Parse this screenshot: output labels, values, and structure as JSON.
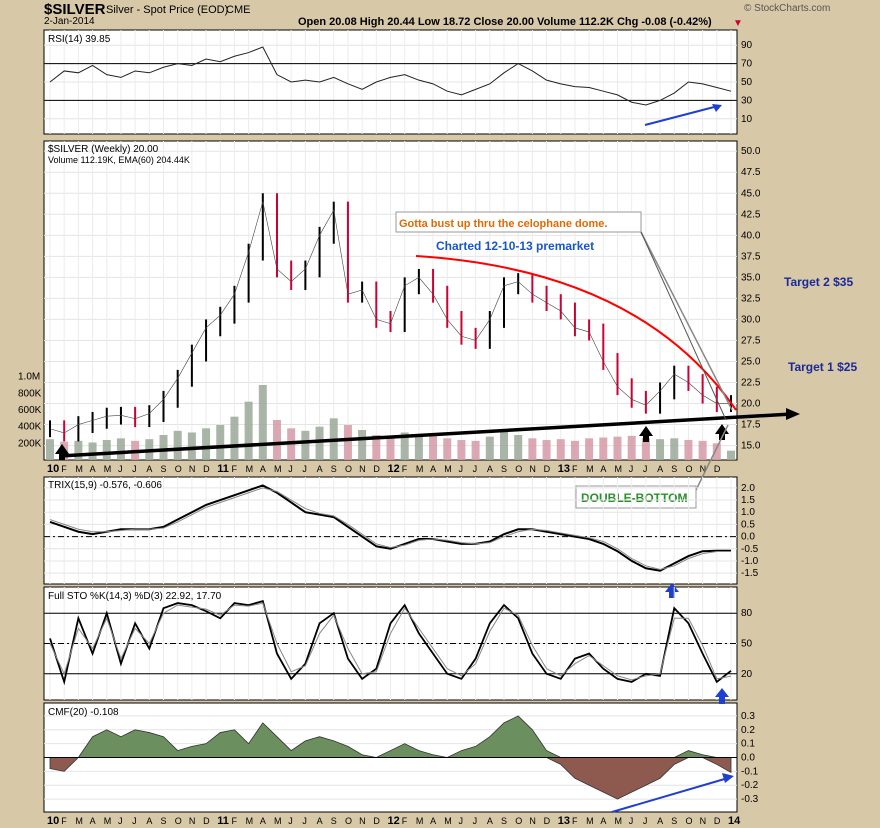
{
  "header": {
    "symbol": "$SILVER",
    "name": "Silver - Spot Price (EOD)",
    "exchange": "CME",
    "date": "2-Jan-2014",
    "ohlc": "Open 20.08   High 20.44   Low 18.72   Close 20.00   Volume 112.2K   Chg -0.08 (-0.42%)",
    "brand": "© StockCharts.com"
  },
  "colors": {
    "up": "#000000",
    "down": "#cc0033",
    "cmf_pos": "#6b8f5e",
    "cmf_neg": "#8e5a50",
    "volume_up": "#9aa896",
    "volume_down": "#d49aa6",
    "annotation_blue": "#1f3fd1",
    "dome": "#ff0000",
    "green_text": "#2a8f2a",
    "orange_text": "#e06a00"
  },
  "icons": [
    "up-arrow-black-icon",
    "up-arrow-blue-icon"
  ],
  "chart_data": [
    {
      "type": "line",
      "panel": "RSI",
      "title": "RSI(14) 39.85",
      "y_ticks": [
        "90",
        "70",
        "50",
        "30",
        "10"
      ],
      "ylim": [
        0,
        100
      ],
      "reference_lines": [
        70,
        30
      ],
      "x": [
        "10",
        "F",
        "M",
        "A",
        "M",
        "J",
        "J",
        "A",
        "S",
        "O",
        "N",
        "D",
        "11",
        "F",
        "M",
        "A",
        "M",
        "J",
        "J",
        "A",
        "S",
        "O",
        "N",
        "D",
        "12",
        "F",
        "M",
        "A",
        "M",
        "J",
        "J",
        "A",
        "S",
        "O",
        "N",
        "D",
        "13",
        "F",
        "M",
        "A",
        "M",
        "J",
        "J",
        "A",
        "S",
        "O",
        "N",
        "D",
        "14"
      ],
      "series": [
        {
          "name": "RSI(14)",
          "values": [
            50,
            62,
            60,
            68,
            58,
            55,
            62,
            60,
            66,
            70,
            68,
            75,
            72,
            78,
            82,
            88,
            58,
            50,
            52,
            50,
            55,
            48,
            42,
            50,
            55,
            58,
            52,
            48,
            40,
            36,
            42,
            48,
            60,
            70,
            62,
            52,
            48,
            45,
            44,
            40,
            36,
            28,
            25,
            30,
            38,
            50,
            48,
            44,
            40
          ]
        }
      ]
    },
    {
      "type": "ohlc",
      "panel": "price",
      "title": "$SILVER (Weekly) 20.00",
      "y_ticks": [
        "50.0",
        "47.5",
        "45.0",
        "42.5",
        "40.0",
        "37.5",
        "35.0",
        "32.5",
        "30.0",
        "27.5",
        "25.0",
        "22.5",
        "20.0",
        "17.5",
        "15.0"
      ],
      "ylim": [
        14,
        50.5
      ],
      "x_ticks": [
        "10",
        "F",
        "M",
        "A",
        "M",
        "J",
        "J",
        "A",
        "S",
        "O",
        "N",
        "D",
        "11",
        "F",
        "M",
        "A",
        "M",
        "J",
        "J",
        "A",
        "S",
        "O",
        "N",
        "D",
        "12",
        "F",
        "M",
        "A",
        "M",
        "J",
        "J",
        "A",
        "S",
        "O",
        "N",
        "D",
        "13",
        "F",
        "M",
        "A",
        "M",
        "J",
        "J",
        "A",
        "S",
        "O",
        "N",
        "D"
      ],
      "x": [
        "10",
        "F",
        "M",
        "A",
        "M",
        "J",
        "J",
        "A",
        "S",
        "O",
        "N",
        "D",
        "11",
        "F",
        "M",
        "A",
        "M",
        "J",
        "J",
        "A",
        "S",
        "O",
        "N",
        "D",
        "12",
        "F",
        "M",
        "A",
        "M",
        "J",
        "J",
        "A",
        "S",
        "O",
        "N",
        "D",
        "13",
        "F",
        "M",
        "A",
        "M",
        "J",
        "J",
        "A",
        "S",
        "O",
        "N",
        "D",
        "14"
      ],
      "series": [
        {
          "name": "$SILVER (Weekly)",
          "values": [
            17.0,
            16.5,
            17.5,
            18.0,
            18.5,
            18.6,
            18.2,
            18.8,
            20.5,
            23.0,
            26.0,
            29.0,
            30.5,
            33.0,
            38.0,
            44.0,
            36.0,
            34.5,
            36.0,
            40.0,
            43.0,
            33.0,
            33.5,
            30.0,
            29.5,
            34.0,
            35.0,
            33.0,
            30.0,
            28.0,
            27.5,
            30.0,
            34.0,
            34.5,
            33.0,
            32.0,
            31.0,
            29.0,
            28.5,
            25.0,
            22.0,
            20.5,
            19.8,
            21.5,
            23.5,
            22.5,
            21.0,
            20.0,
            20.0
          ]
        }
      ],
      "volume": {
        "title": "Volume 112.19K, EMA(60) 204.44K",
        "y_ticks": [
          "1.0M",
          "800K",
          "600K",
          "400K",
          "200K"
        ],
        "values_k": [
          250,
          220,
          230,
          210,
          240,
          260,
          230,
          250,
          300,
          350,
          330,
          380,
          420,
          520,
          700,
          900,
          480,
          380,
          350,
          400,
          500,
          420,
          360,
          300,
          280,
          330,
          310,
          290,
          260,
          240,
          230,
          280,
          360,
          300,
          260,
          240,
          250,
          230,
          260,
          270,
          280,
          290,
          260,
          250,
          260,
          240,
          230,
          200,
          112
        ]
      },
      "annotations": [
        "Gotta bust up thru the celophane dome.",
        "Charted 12-10-13 premarket",
        "Target 2 $35",
        "Target 1 $25",
        "DOUBLE-BOTTOM"
      ]
    },
    {
      "type": "line",
      "panel": "TRIX",
      "title": "TRIX(15,9) -0.576, -0.606",
      "y_ticks": [
        "2.0",
        "1.5",
        "1.0",
        "0.5",
        "0.0",
        "-0.5",
        "-1.0",
        "-1.5"
      ],
      "ylim": [
        -1.7,
        2.2
      ],
      "x": [
        "10",
        "F",
        "M",
        "A",
        "M",
        "J",
        "J",
        "A",
        "S",
        "O",
        "N",
        "D",
        "11",
        "F",
        "M",
        "A",
        "M",
        "J",
        "J",
        "A",
        "S",
        "O",
        "N",
        "D",
        "12",
        "F",
        "M",
        "A",
        "M",
        "J",
        "J",
        "A",
        "S",
        "O",
        "N",
        "D",
        "13",
        "F",
        "M",
        "A",
        "M",
        "J",
        "J",
        "A",
        "S",
        "O",
        "N",
        "D",
        "14"
      ],
      "series": [
        {
          "name": "TRIX",
          "values": [
            0.6,
            0.4,
            0.2,
            0.1,
            0.2,
            0.3,
            0.3,
            0.3,
            0.4,
            0.7,
            1.0,
            1.3,
            1.5,
            1.7,
            1.9,
            2.1,
            1.8,
            1.4,
            1.0,
            0.9,
            0.8,
            0.4,
            0.0,
            -0.4,
            -0.5,
            -0.3,
            -0.1,
            -0.1,
            -0.2,
            -0.3,
            -0.3,
            -0.2,
            0.1,
            0.3,
            0.3,
            0.2,
            0.1,
            0.0,
            -0.1,
            -0.3,
            -0.6,
            -1.0,
            -1.3,
            -1.4,
            -1.1,
            -0.8,
            -0.6,
            -0.58,
            -0.58
          ]
        },
        {
          "name": "Signal",
          "values": [
            0.7,
            0.5,
            0.3,
            0.2,
            0.2,
            0.25,
            0.3,
            0.3,
            0.35,
            0.6,
            0.9,
            1.2,
            1.4,
            1.6,
            1.8,
            2.0,
            1.85,
            1.5,
            1.15,
            0.95,
            0.85,
            0.5,
            0.1,
            -0.3,
            -0.45,
            -0.35,
            -0.15,
            -0.1,
            -0.15,
            -0.25,
            -0.3,
            -0.25,
            0.0,
            0.2,
            0.3,
            0.25,
            0.15,
            0.05,
            -0.05,
            -0.2,
            -0.5,
            -0.9,
            -1.2,
            -1.35,
            -1.2,
            -0.9,
            -0.7,
            -0.61,
            -0.61
          ]
        }
      ]
    },
    {
      "type": "line",
      "panel": "Full STO",
      "title": "Full STO %K(14,3) %D(3) 22.92, 17.70",
      "y_ticks": [
        "80",
        "50",
        "20"
      ],
      "ylim": [
        0,
        100
      ],
      "x": [
        "10",
        "F",
        "M",
        "A",
        "M",
        "J",
        "J",
        "A",
        "S",
        "O",
        "N",
        "D",
        "11",
        "F",
        "M",
        "A",
        "M",
        "J",
        "J",
        "A",
        "S",
        "O",
        "N",
        "D",
        "12",
        "F",
        "M",
        "A",
        "M",
        "J",
        "J",
        "A",
        "S",
        "O",
        "N",
        "D",
        "13",
        "F",
        "M",
        "A",
        "M",
        "J",
        "J",
        "A",
        "S",
        "O",
        "N",
        "D",
        "14"
      ],
      "series": [
        {
          "name": "%K",
          "values": [
            55,
            12,
            75,
            40,
            80,
            30,
            70,
            45,
            85,
            90,
            88,
            82,
            75,
            90,
            88,
            92,
            40,
            15,
            30,
            70,
            80,
            35,
            15,
            25,
            70,
            88,
            60,
            40,
            20,
            15,
            35,
            70,
            88,
            75,
            40,
            20,
            15,
            35,
            40,
            25,
            15,
            12,
            20,
            18,
            85,
            70,
            40,
            12,
            22.92
          ]
        },
        {
          "name": "%D",
          "values": [
            50,
            20,
            65,
            45,
            75,
            35,
            65,
            50,
            80,
            88,
            86,
            84,
            78,
            88,
            87,
            90,
            50,
            22,
            28,
            60,
            78,
            45,
            20,
            22,
            60,
            85,
            65,
            45,
            25,
            18,
            30,
            62,
            85,
            78,
            48,
            25,
            18,
            30,
            38,
            28,
            18,
            14,
            18,
            20,
            75,
            75,
            48,
            15,
            17.7
          ]
        }
      ]
    },
    {
      "type": "area",
      "panel": "CMF",
      "title": "CMF(20) -0.108",
      "y_ticks": [
        "0.3",
        "0.2",
        "0.1",
        "0.0",
        "-0.1",
        "-0.2",
        "-0.3"
      ],
      "ylim": [
        -0.35,
        0.35
      ],
      "x": [
        "10",
        "F",
        "M",
        "A",
        "M",
        "J",
        "J",
        "A",
        "S",
        "O",
        "N",
        "D",
        "11",
        "F",
        "M",
        "A",
        "M",
        "J",
        "J",
        "A",
        "S",
        "O",
        "N",
        "D",
        "12",
        "F",
        "M",
        "A",
        "M",
        "J",
        "J",
        "A",
        "S",
        "O",
        "N",
        "D",
        "13",
        "F",
        "M",
        "A",
        "M",
        "J",
        "J",
        "A",
        "S",
        "O",
        "N",
        "D",
        "14"
      ],
      "series": [
        {
          "name": "CMF(20)",
          "values": [
            -0.08,
            -0.1,
            0.0,
            0.15,
            0.2,
            0.15,
            0.2,
            0.18,
            0.15,
            0.05,
            0.08,
            0.1,
            0.18,
            0.2,
            0.1,
            0.25,
            0.15,
            0.05,
            0.12,
            0.15,
            0.12,
            0.08,
            0.02,
            0.0,
            0.05,
            0.1,
            0.05,
            0.02,
            0.0,
            0.05,
            0.08,
            0.15,
            0.25,
            0.3,
            0.2,
            0.05,
            -0.05,
            -0.15,
            -0.2,
            -0.25,
            -0.3,
            -0.25,
            -0.2,
            -0.15,
            -0.05,
            0.05,
            0.02,
            -0.05,
            -0.108
          ]
        }
      ]
    }
  ]
}
